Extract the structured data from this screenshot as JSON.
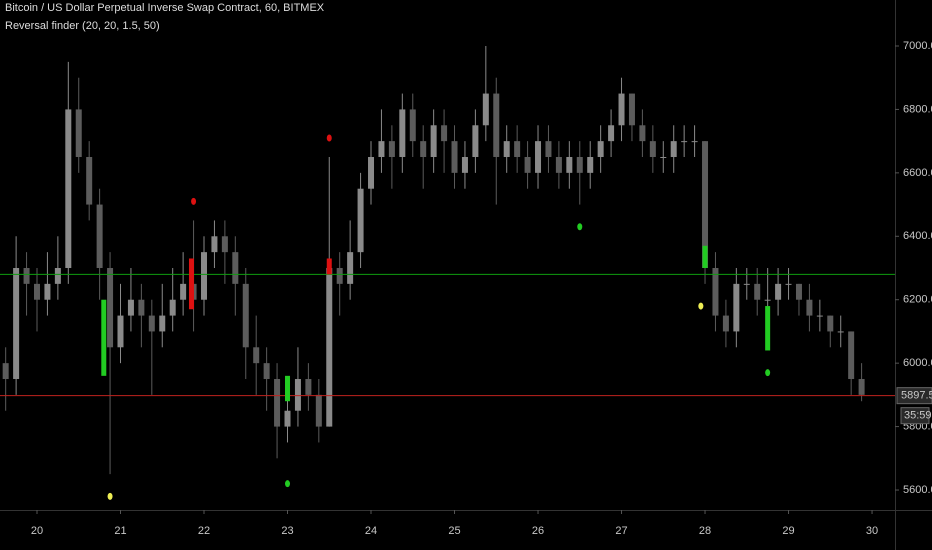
{
  "chart_data": {
    "type": "candlestick",
    "title": "Bitcoin / US Dollar Perpetual Inverse Swap Contract, 60, BITMEX",
    "subtitle": "Reversal finder (20, 20, 1.5, 50)",
    "x": [
      19.625,
      19.75,
      19.875,
      20,
      20.125,
      20.25,
      20.375,
      20.5,
      20.625,
      20.75,
      20.875,
      21,
      21.125,
      21.25,
      21.375,
      21.5,
      21.625,
      21.75,
      21.875,
      22,
      22.125,
      22.25,
      22.375,
      22.5,
      22.625,
      22.75,
      22.875,
      23,
      23.125,
      23.25,
      23.375,
      23.5,
      23.625,
      23.75,
      23.875,
      24,
      24.125,
      24.25,
      24.375,
      24.5,
      24.625,
      24.75,
      24.875,
      25,
      25.125,
      25.25,
      25.375,
      25.5,
      25.625,
      25.75,
      25.875,
      26,
      26.125,
      26.25,
      26.375,
      26.5,
      26.625,
      26.75,
      26.875,
      27,
      27.125,
      27.25,
      27.375,
      27.5,
      27.625,
      27.75,
      27.875,
      28,
      28.125,
      28.25,
      28.375,
      28.5,
      28.625,
      28.75,
      28.875,
      29,
      29.125,
      29.25,
      29.375,
      29.5,
      29.625,
      29.75,
      29.875
    ],
    "open": [
      6000,
      5950,
      6300,
      6250,
      6200,
      6250,
      6300,
      6800,
      6650,
      6500,
      6300,
      6050,
      6150,
      6200,
      6150,
      6100,
      6150,
      6200,
      6250,
      6200,
      6350,
      6400,
      6350,
      6250,
      6050,
      6000,
      5950,
      5800,
      5850,
      5950,
      5900,
      5800,
      6300,
      6250,
      6350,
      6550,
      6650,
      6700,
      6650,
      6800,
      6700,
      6650,
      6750,
      6700,
      6600,
      6650,
      6750,
      6850,
      6650,
      6700,
      6650,
      6600,
      6700,
      6650,
      6600,
      6650,
      6600,
      6650,
      6700,
      6750,
      6850,
      6750,
      6700,
      6650,
      6650,
      6700,
      6700,
      6700,
      6300,
      6150,
      6100,
      6250,
      6250,
      6200,
      6200,
      6250,
      6250,
      6200,
      6150,
      6150,
      6100,
      6100,
      5950
    ],
    "high": [
      6050,
      6400,
      6350,
      6300,
      6350,
      6400,
      6950,
      6900,
      6700,
      6550,
      6350,
      6250,
      6300,
      6250,
      6200,
      6250,
      6300,
      6350,
      6450,
      6400,
      6450,
      6450,
      6400,
      6300,
      6150,
      6050,
      6000,
      5950,
      6050,
      6000,
      5950,
      6650,
      6350,
      6450,
      6600,
      6700,
      6800,
      6750,
      6850,
      6850,
      6750,
      6800,
      6800,
      6750,
      6700,
      6800,
      7000,
      6900,
      6750,
      6750,
      6700,
      6750,
      6750,
      6700,
      6700,
      6700,
      6700,
      6750,
      6800,
      6900,
      6850,
      6800,
      6750,
      6700,
      6750,
      6750,
      6750,
      6700,
      6350,
      6200,
      6300,
      6300,
      6300,
      6300,
      6300,
      6300,
      6250,
      6250,
      6200,
      6150,
      6150,
      6100,
      6000
    ],
    "low": [
      5850,
      5900,
      6150,
      6100,
      6150,
      6200,
      6250,
      6600,
      6450,
      6200,
      5650,
      6000,
      6100,
      6050,
      5900,
      6050,
      6100,
      6150,
      6100,
      6150,
      6300,
      6250,
      6150,
      5950,
      5900,
      5850,
      5700,
      5750,
      5800,
      5850,
      5750,
      5800,
      6150,
      6200,
      6300,
      6500,
      6600,
      6550,
      6600,
      6650,
      6550,
      6600,
      6600,
      6550,
      6550,
      6600,
      6700,
      6500,
      6600,
      6600,
      6550,
      6550,
      6600,
      6550,
      6550,
      6500,
      6550,
      6600,
      6650,
      6700,
      6700,
      6650,
      6600,
      6600,
      6600,
      6650,
      6650,
      6250,
      6100,
      6050,
      6050,
      6200,
      6150,
      6100,
      6150,
      6200,
      6150,
      6100,
      6100,
      6050,
      6050,
      5900,
      5880
    ],
    "close": [
      5950,
      6300,
      6250,
      6200,
      6250,
      6300,
      6800,
      6650,
      6500,
      6300,
      6050,
      6150,
      6200,
      6150,
      6100,
      6150,
      6200,
      6250,
      6200,
      6350,
      6400,
      6350,
      6250,
      6050,
      6000,
      5950,
      5800,
      5850,
      5950,
      5900,
      5800,
      6300,
      6250,
      6350,
      6550,
      6650,
      6700,
      6650,
      6800,
      6700,
      6650,
      6750,
      6700,
      6600,
      6650,
      6750,
      6850,
      6650,
      6700,
      6650,
      6600,
      6700,
      6650,
      6600,
      6650,
      6600,
      6650,
      6700,
      6750,
      6850,
      6750,
      6700,
      6650,
      6650,
      6700,
      6700,
      6700,
      6300,
      6150,
      6100,
      6250,
      6250,
      6200,
      6200,
      6250,
      6250,
      6200,
      6150,
      6150,
      6100,
      6100,
      5950,
      5900
    ],
    "up_color": "#8a8a8a",
    "down_color": "#5c5c5c",
    "signal_bars": {
      "x": [
        20.8,
        21.85,
        23.0,
        23.5,
        28.0,
        28.75
      ],
      "low": [
        5960,
        6170,
        5880,
        6280,
        6300,
        6040
      ],
      "high": [
        6200,
        6330,
        5960,
        6330,
        6370,
        6180
      ],
      "colors": [
        "#22cc22",
        "#dd1111",
        "#22cc22",
        "#dd1111",
        "#22cc22",
        "#22cc22"
      ]
    },
    "signal_dots": {
      "x": [
        20.875,
        21.875,
        23.0,
        23.5,
        26.5,
        27.95,
        28.75
      ],
      "values": [
        5580,
        6510,
        5620,
        6710,
        6430,
        6180,
        5970
      ],
      "colors": [
        "#eeee55",
        "#dd1111",
        "#22cc22",
        "#dd1111",
        "#22cc22",
        "#eeee55",
        "#22cc22"
      ]
    },
    "levels": [
      {
        "value": 6280,
        "color": "#0f9d0f"
      }
    ],
    "last_price": {
      "value": 5897.5,
      "label": "5897.5",
      "color": "#c0231e"
    },
    "countdown": "35:59",
    "xlim": [
      19.557,
      30.275
    ],
    "xticks": [
      20,
      21,
      22,
      23,
      24,
      25,
      26,
      27,
      28,
      29,
      30
    ],
    "ylim": [
      5537,
      7145
    ],
    "yticks": [
      {
        "value": 5600,
        "label": "5600.0"
      },
      {
        "value": 5800,
        "label": "5800.0"
      },
      {
        "value": 6000,
        "label": "6000.0"
      },
      {
        "value": 6200,
        "label": "6200.0"
      },
      {
        "value": 6400,
        "label": "6400.0"
      },
      {
        "value": 6600,
        "label": "6600.0"
      },
      {
        "value": 6800,
        "label": "6800.0"
      },
      {
        "value": 7000,
        "label": "7000.0"
      }
    ]
  }
}
